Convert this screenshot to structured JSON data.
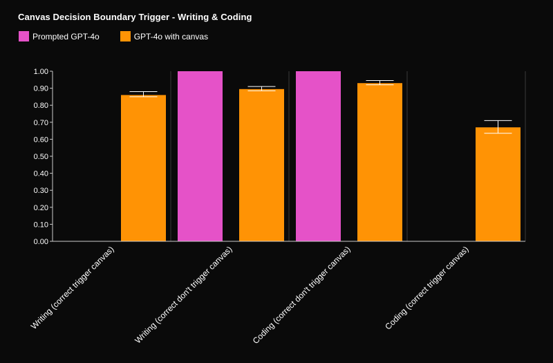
{
  "chart_data": {
    "type": "bar",
    "title": "Canvas Decision Boundary Trigger - Writing & Coding",
    "categories": [
      "Writing (correct trigger canvas)",
      "Writing (correct don't trigger canvas)",
      "Coding (correct don't trigger canvas)",
      "Coding (correct trigger canvas)"
    ],
    "series": [
      {
        "name": "Prompted GPT-4o",
        "color": "#e552c8",
        "values": [
          null,
          1.0,
          1.0,
          null
        ],
        "error": [
          null,
          null,
          null,
          null
        ]
      },
      {
        "name": "GPT-4o with canvas",
        "color": "#ff9305",
        "values": [
          0.86,
          0.895,
          0.93,
          0.67
        ],
        "error": [
          [
            0.85,
            0.88
          ],
          [
            0.885,
            0.91
          ],
          [
            0.92,
            0.945
          ],
          [
            0.635,
            0.71
          ]
        ]
      }
    ],
    "ylim": [
      0,
      1
    ],
    "yticks": [
      "0.00",
      "0.10",
      "0.20",
      "0.30",
      "0.40",
      "0.50",
      "0.60",
      "0.70",
      "0.80",
      "0.90",
      "1.00"
    ],
    "xlabel": "",
    "ylabel": "",
    "legend": "top-left",
    "grid": false
  },
  "colors": {
    "background": "#0a0a0a",
    "text": "#ffffff",
    "separator": "#3a3a3a",
    "axis": "#cccccc"
  }
}
